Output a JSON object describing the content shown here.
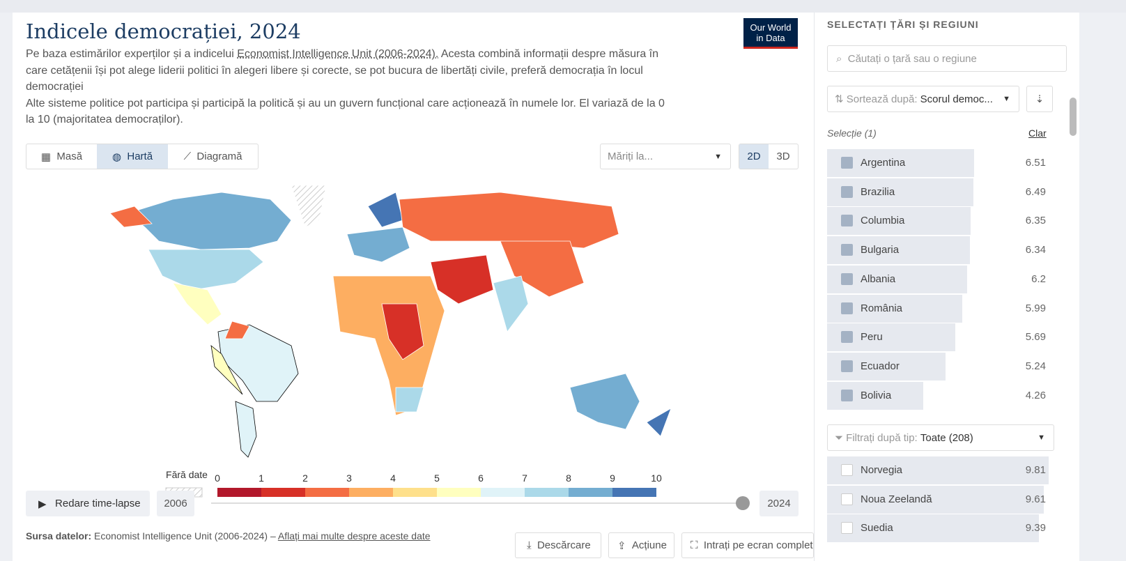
{
  "header": {
    "title": "Indicele democrației, 2024",
    "logo": [
      "Our World",
      "in Data"
    ],
    "description": {
      "lead": "Pe baza estimărilor experților și a indicelui",
      "link": "Economist Intelligence Unit (2006-2024).",
      "rest": "Acesta combină informații despre măsura în care cetățenii își pot alege liderii politici în alegeri libere și corecte, se pot bucura de libertăți civile, preferă democrația în locul democrației",
      "second": "Alte sisteme politice pot participa și participă la politică și au un guvern funcțional care acționează în numele lor. El variază de la 0 la 10 (majoritatea democraților)."
    }
  },
  "tabs": [
    "Masă",
    "Hartă",
    "Diagramă"
  ],
  "zoom": "Măriți la...",
  "views": [
    "2D",
    "3D"
  ],
  "legend": {
    "no_data": "Fără date",
    "ticks": [
      0,
      1,
      2,
      3,
      4,
      5,
      6,
      7,
      8,
      9,
      10
    ],
    "colors": [
      "#b2182b",
      "#d73027",
      "#f46d43",
      "#fdae61",
      "#fee08b",
      "#ffffbf",
      "#e0f3f8",
      "#abd9e9",
      "#74add1",
      "#4575b4"
    ]
  },
  "timeline": {
    "play": "Redare time-lapse",
    "start": "2006",
    "end": "2024"
  },
  "source": {
    "label": "Sursa datelor:",
    "text": "Economist Intelligence Unit (2006-2024) –",
    "link": "Aflați mai multe despre aceste date"
  },
  "actions": [
    "Descărcare",
    "Acțiune",
    "Intrați pe ecran complet"
  ],
  "sidebar": {
    "title": "SELECTAȚI ȚĂRI ȘI REGIUNI",
    "search": "Căutați o țară sau o regiune",
    "sort_label": "Sortează după:",
    "sort_value": "Scorul democ...",
    "selection": "Selecție (1)",
    "clear": "Clar",
    "selected": [
      {
        "name": "Argentina",
        "value": 6.51
      },
      {
        "name": "Brazilia",
        "value": 6.49
      },
      {
        "name": "Columbia",
        "value": 6.35
      },
      {
        "name": "Bulgaria",
        "value": 6.34
      },
      {
        "name": "Albania",
        "value": 6.2
      },
      {
        "name": "România",
        "value": 5.99
      },
      {
        "name": "Peru",
        "value": 5.69
      },
      {
        "name": "Ecuador",
        "value": 5.24
      },
      {
        "name": "Bolivia",
        "value": 4.26
      }
    ],
    "filter_label": "Filtrați după tip:",
    "filter_value": "Toate (208)",
    "others": [
      {
        "name": "Norvegia",
        "value": 9.81
      },
      {
        "name": "Noua Zeelandă",
        "value": 9.61
      },
      {
        "name": "Suedia",
        "value": 9.39
      }
    ]
  }
}
